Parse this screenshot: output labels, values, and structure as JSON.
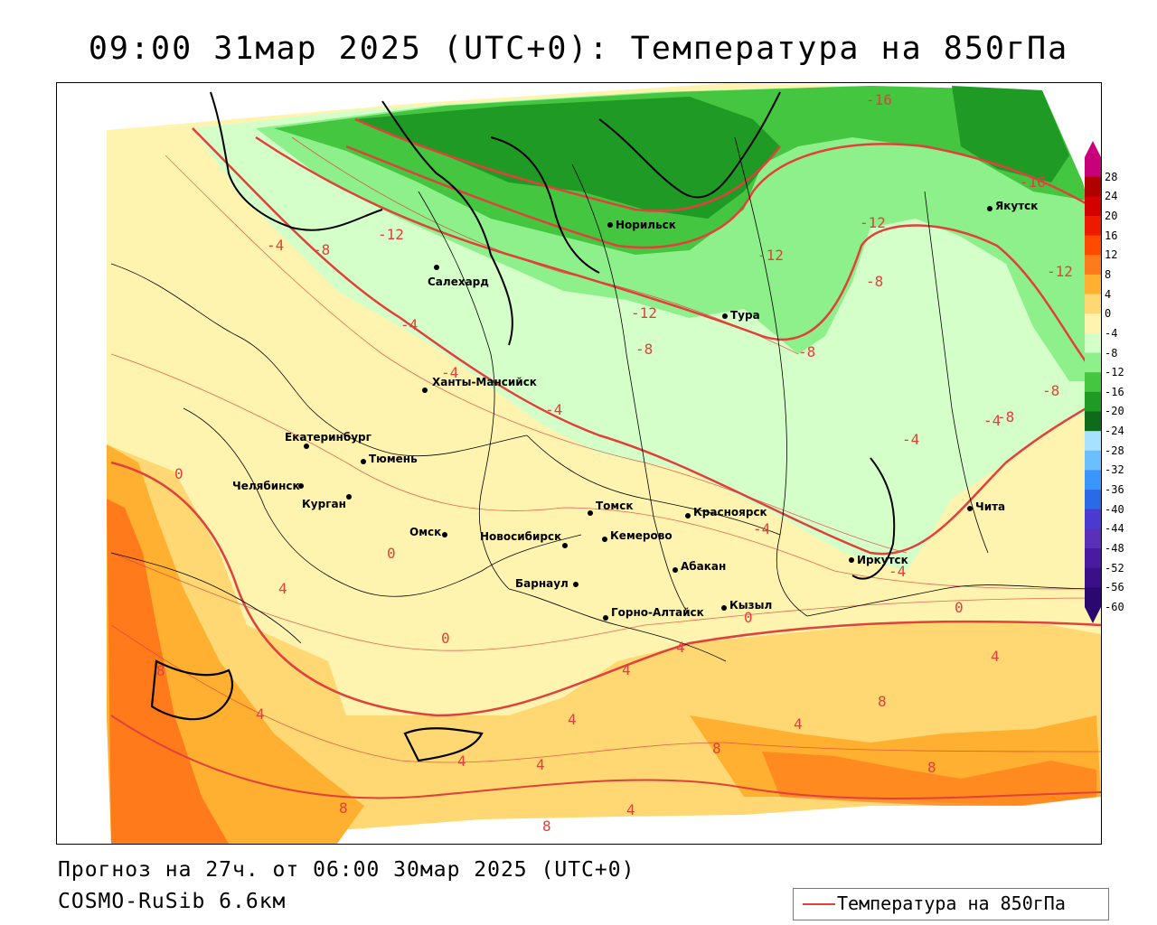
{
  "title": "09:00 31мар 2025 (UTC+0): Температура на 850гПа",
  "footer": {
    "forecast": "Прогноз на 27ч. от 06:00 30мар 2025 (UTC+0)",
    "model": "COSMO-RuSib 6.6км"
  },
  "legend": {
    "label": "Температура на 850гПа",
    "color": "#e0413a"
  },
  "colorbar": {
    "ticks": [
      "28",
      "24",
      "20",
      "16",
      "12",
      "8",
      "4",
      "0",
      "-4",
      "-8",
      "-12",
      "-16",
      "-20",
      "-24",
      "-28",
      "-32",
      "-36",
      "-40",
      "-44",
      "-48",
      "-52",
      "-56",
      "-60"
    ],
    "colors": [
      "#c8007a",
      "#b00000",
      "#d40000",
      "#ee1a00",
      "#ff4a00",
      "#ff7a1a",
      "#ffb030",
      "#ffd873",
      "#fff3b0",
      "#d4ffc8",
      "#8ef08a",
      "#44c640",
      "#1f9a25",
      "#0f6a1a",
      "#a8e0ff",
      "#6cbfff",
      "#3a96ff",
      "#2a6ae6",
      "#4a3ad0",
      "#5a30b8",
      "#4a1aa0",
      "#3a0f88",
      "#2a0870"
    ]
  },
  "cities": [
    {
      "name": "Норильск"
    },
    {
      "name": "Якутск"
    },
    {
      "name": "Салехард"
    },
    {
      "name": "Тура"
    },
    {
      "name": "Ханты-Мансийск"
    },
    {
      "name": "Екатеринбург"
    },
    {
      "name": "Тюмень"
    },
    {
      "name": "Челябинск"
    },
    {
      "name": "Курган"
    },
    {
      "name": "Омск"
    },
    {
      "name": "Томск"
    },
    {
      "name": "Новосибирск"
    },
    {
      "name": "Кемерово"
    },
    {
      "name": "Красноярск"
    },
    {
      "name": "Абакан"
    },
    {
      "name": "Барнаул"
    },
    {
      "name": "Горно-Алтайск"
    },
    {
      "name": "Кызыл"
    },
    {
      "name": "Иркутск"
    },
    {
      "name": "Чита"
    }
  ],
  "isotherm_labels": [
    "-16",
    "-16",
    "-12",
    "-12",
    "-12",
    "-12",
    "-12",
    "-8",
    "-8",
    "-8",
    "-8",
    "-8",
    "-8",
    "-4",
    "-4",
    "-4",
    "-4",
    "-4",
    "-4",
    "-4",
    "-4",
    "0",
    "0",
    "0",
    "0",
    "0",
    "4",
    "4",
    "4",
    "4",
    "4",
    "4",
    "4",
    "4",
    "4",
    "4",
    "8",
    "8",
    "8",
    "8",
    "8",
    "8"
  ]
}
